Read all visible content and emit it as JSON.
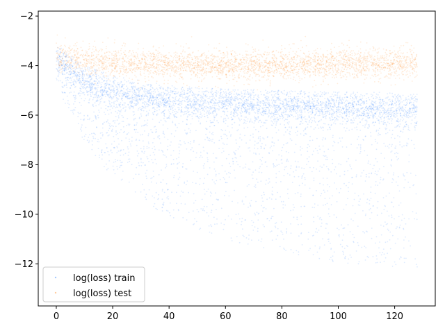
{
  "chart_data": {
    "type": "scatter",
    "title": "",
    "xlabel": "",
    "ylabel": "",
    "xlim": [
      -6.4,
      134.4
    ],
    "ylim": [
      -13.7,
      -1.8
    ],
    "x_ticks": [
      0,
      20,
      40,
      60,
      80,
      100,
      120
    ],
    "y_ticks": [
      -2,
      -4,
      -6,
      -8,
      -10,
      -12
    ],
    "x_tick_labels": [
      "0",
      "20",
      "40",
      "60",
      "80",
      "100",
      "120"
    ],
    "y_tick_labels": [
      "−2",
      "−4",
      "−6",
      "−8",
      "−10",
      "−12"
    ],
    "legend_position": "lower-left",
    "grid": false,
    "series": [
      {
        "name": "log(loss) train",
        "color": "#1f77ff",
        "alpha": 0.15,
        "x_range": [
          0,
          128
        ],
        "trend": [
          {
            "x": 0,
            "center": -3.6,
            "spread_low": 1.2,
            "spread_high": 0.5
          },
          {
            "x": 10,
            "center": -4.6,
            "spread_low": 2.5,
            "spread_high": 0.6
          },
          {
            "x": 20,
            "center": -5.0,
            "spread_low": 3.5,
            "spread_high": 0.6
          },
          {
            "x": 40,
            "center": -5.4,
            "spread_low": 4.8,
            "spread_high": 0.6
          },
          {
            "x": 60,
            "center": -5.5,
            "spread_low": 5.5,
            "spread_high": 0.6
          },
          {
            "x": 80,
            "center": -5.6,
            "spread_low": 6.0,
            "spread_high": 0.6
          },
          {
            "x": 100,
            "center": -5.65,
            "spread_low": 6.3,
            "spread_high": 0.6
          },
          {
            "x": 128,
            "center": -5.7,
            "spread_low": 6.5,
            "spread_high": 0.6
          }
        ]
      },
      {
        "name": "log(loss) test",
        "color": "#ff7f0e",
        "alpha": 0.15,
        "x_range": [
          0,
          128
        ],
        "trend": [
          {
            "x": 0,
            "center": -3.6,
            "spread_low": 0.5,
            "spread_high": 0.4
          },
          {
            "x": 20,
            "center": -3.9,
            "spread_low": 0.5,
            "spread_high": 0.4
          },
          {
            "x": 60,
            "center": -4.0,
            "spread_low": 0.5,
            "spread_high": 0.4
          },
          {
            "x": 128,
            "center": -3.9,
            "spread_low": 0.5,
            "spread_high": 0.4
          }
        ]
      }
    ]
  }
}
